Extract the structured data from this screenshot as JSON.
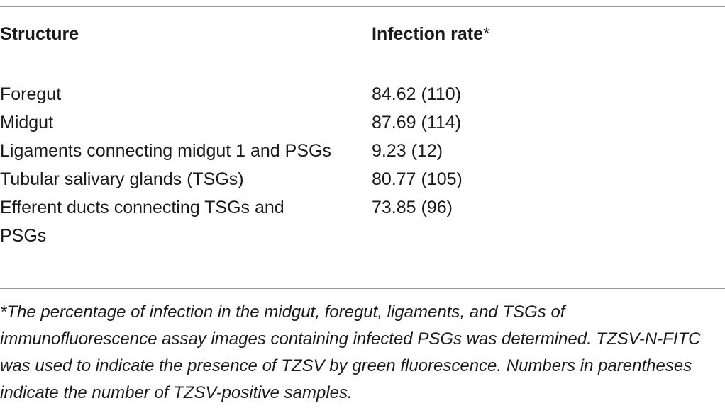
{
  "table": {
    "headers": {
      "structure": "Structure",
      "infection_rate": "Infection rate",
      "infection_rate_mark": "*"
    },
    "rows": [
      {
        "structure": "Foregut",
        "infection_rate": "84.62 (110)"
      },
      {
        "structure": "Midgut",
        "infection_rate": "87.69 (114)"
      },
      {
        "structure": "Ligaments connecting midgut 1 and PSGs",
        "infection_rate": "9.23 (12)"
      },
      {
        "structure": "Tubular salivary glands (TSGs)",
        "infection_rate": "80.77 (105)"
      },
      {
        "structure": "Efferent ducts connecting TSGs and PSGs",
        "infection_rate": "73.85 (96)"
      }
    ],
    "footnote": "*The percentage of infection in the midgut, foregut, ligaments, and TSGs of immunofluorescence assay images containing infected PSGs was determined. TZSV-N-FITC was used to indicate the presence of TZSV by green fluorescence. Numbers in parentheses indicate the number of TZSV-positive samples."
  },
  "colors": {
    "rule": "#9a9a9a",
    "text": "#1a1a1a"
  }
}
